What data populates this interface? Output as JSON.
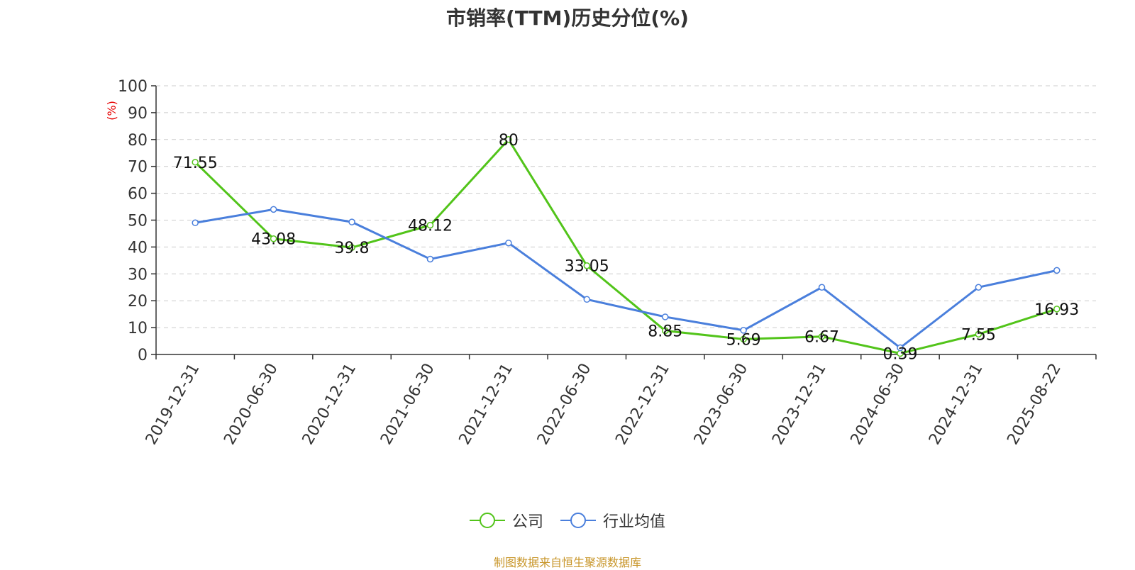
{
  "chart_data": {
    "type": "line",
    "title": "市销率(TTM)历史分位(%)",
    "ylabel": "(%)",
    "xlabel": "",
    "ylim": [
      0,
      100
    ],
    "yticks": [
      0,
      10,
      20,
      30,
      40,
      50,
      60,
      70,
      80,
      90,
      100
    ],
    "grid": true,
    "legend_position": "bottom",
    "x": [
      "2019-12-31",
      "2020-06-30",
      "2020-12-31",
      "2021-06-30",
      "2021-12-31",
      "2022-06-30",
      "2022-12-31",
      "2023-06-30",
      "2023-12-31",
      "2024-06-30",
      "2024-12-31",
      "2025-08-22"
    ],
    "series": [
      {
        "name": "公司",
        "color": "#52c41a",
        "values": [
          71.55,
          43.08,
          39.8,
          48.12,
          80,
          33.05,
          8.85,
          5.69,
          6.67,
          0.39,
          7.55,
          16.93
        ],
        "labels": [
          "71.55",
          "43.08",
          "39.8",
          "48.12",
          "80",
          "33.05",
          "8.85",
          "5.69",
          "6.67",
          "0.39",
          "7.55",
          "16.93"
        ]
      },
      {
        "name": "行业均值",
        "color": "#4a7fdc",
        "values": [
          49,
          54,
          49.3,
          35.5,
          41.5,
          20.5,
          14,
          9,
          25,
          2.5,
          25,
          31.3
        ]
      }
    ]
  },
  "source": "制图数据来自恒生聚源数据库"
}
